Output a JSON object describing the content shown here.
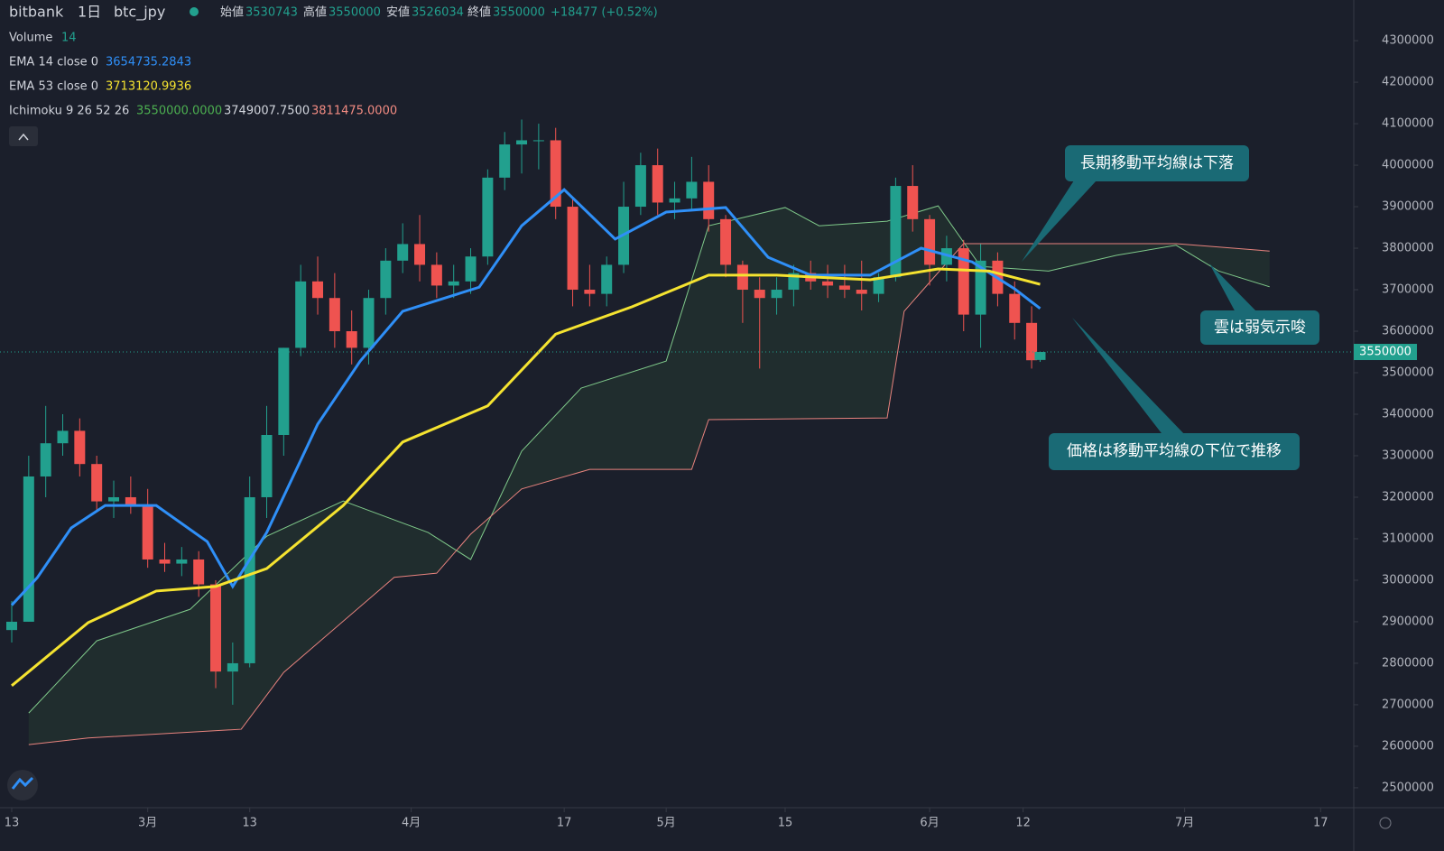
{
  "header": {
    "exchange": "bitbank",
    "interval": "1日",
    "symbol": "btc_jpy",
    "open_label": "始値",
    "open": 3530743,
    "high_label": "高値",
    "high": 3550000,
    "low_label": "安値",
    "low": 3526034,
    "close_label": "終値",
    "close": 3550000,
    "change": "+18477 (+0.52%)"
  },
  "indicators": [
    {
      "label": "Volume",
      "readouts": [
        "14"
      ]
    },
    {
      "label": "Ichimoku 9 26 52 26",
      "readouts": [
        "3550000.0000",
        "3749007.7500",
        "3811475.0000"
      ]
    }
  ],
  "annotations": [
    "長期移動平均線は下落",
    "雲は弱気示唆",
    "価格は移動平均線の下位で推移"
  ],
  "chart_data": {
    "type": "candlestick",
    "x": [
      0,
      2,
      4,
      6,
      8,
      10,
      12,
      14,
      16,
      18,
      20,
      22,
      24,
      26,
      28,
      30,
      32,
      34,
      36,
      38,
      40,
      42,
      44,
      46,
      48,
      50,
      52,
      54,
      56,
      58,
      60,
      62,
      64,
      66,
      68,
      70,
      72,
      74,
      76,
      78,
      80,
      82,
      84,
      86,
      88,
      90,
      92,
      94,
      96,
      98,
      100,
      102,
      104,
      106,
      108,
      110,
      112,
      114,
      116,
      118,
      120,
      121
    ],
    "candles": [
      [
        2880000,
        2950000,
        2850000,
        2900000
      ],
      [
        2900000,
        3300000,
        2900000,
        3250000
      ],
      [
        3250000,
        3420000,
        3200000,
        3330000
      ],
      [
        3330000,
        3400000,
        3300000,
        3360000
      ],
      [
        3360000,
        3390000,
        3250000,
        3280000
      ],
      [
        3280000,
        3300000,
        3170000,
        3190000
      ],
      [
        3190000,
        3240000,
        3150000,
        3200000
      ],
      [
        3200000,
        3250000,
        3160000,
        3180000
      ],
      [
        3180000,
        3220000,
        3030000,
        3050000
      ],
      [
        3050000,
        3090000,
        3020000,
        3040000
      ],
      [
        3040000,
        3080000,
        3010000,
        3050000
      ],
      [
        3050000,
        3070000,
        2960000,
        2990000
      ],
      [
        2990000,
        3000000,
        2740000,
        2780000
      ],
      [
        2780000,
        2850000,
        2700000,
        2800000
      ],
      [
        2800000,
        3250000,
        2790000,
        3200000
      ],
      [
        3200000,
        3420000,
        3150000,
        3350000
      ],
      [
        3350000,
        3560000,
        3300000,
        3560000
      ],
      [
        3560000,
        3760000,
        3540000,
        3720000
      ],
      [
        3720000,
        3780000,
        3640000,
        3680000
      ],
      [
        3680000,
        3740000,
        3560000,
        3600000
      ],
      [
        3600000,
        3650000,
        3520000,
        3560000
      ],
      [
        3560000,
        3700000,
        3520000,
        3680000
      ],
      [
        3680000,
        3800000,
        3640000,
        3770000
      ],
      [
        3770000,
        3860000,
        3740000,
        3810000
      ],
      [
        3810000,
        3880000,
        3720000,
        3760000
      ],
      [
        3760000,
        3790000,
        3680000,
        3710000
      ],
      [
        3710000,
        3760000,
        3680000,
        3720000
      ],
      [
        3720000,
        3800000,
        3690000,
        3780000
      ],
      [
        3780000,
        3990000,
        3760000,
        3970000
      ],
      [
        3970000,
        4080000,
        3940000,
        4050000
      ],
      [
        4050000,
        4110000,
        3980000,
        4060000
      ],
      [
        4060000,
        4100000,
        3990000,
        4060000
      ],
      [
        4060000,
        4090000,
        3870000,
        3900000
      ],
      [
        3900000,
        3920000,
        3660000,
        3700000
      ],
      [
        3700000,
        3760000,
        3660000,
        3690000
      ],
      [
        3690000,
        3780000,
        3660000,
        3760000
      ],
      [
        3760000,
        3960000,
        3740000,
        3900000
      ],
      [
        3900000,
        4030000,
        3880000,
        4000000
      ],
      [
        4000000,
        4040000,
        3880000,
        3910000
      ],
      [
        3910000,
        3960000,
        3870000,
        3920000
      ],
      [
        3920000,
        4020000,
        3890000,
        3960000
      ],
      [
        3960000,
        4000000,
        3840000,
        3870000
      ],
      [
        3870000,
        3880000,
        3730000,
        3760000
      ],
      [
        3760000,
        3770000,
        3620000,
        3700000
      ],
      [
        3700000,
        3730000,
        3510000,
        3680000
      ],
      [
        3680000,
        3730000,
        3640000,
        3700000
      ],
      [
        3700000,
        3760000,
        3660000,
        3740000
      ],
      [
        3740000,
        3770000,
        3700000,
        3720000
      ],
      [
        3720000,
        3760000,
        3680000,
        3710000
      ],
      [
        3710000,
        3760000,
        3680000,
        3700000
      ],
      [
        3700000,
        3770000,
        3650000,
        3690000
      ],
      [
        3690000,
        3740000,
        3670000,
        3730000
      ],
      [
        3730000,
        3970000,
        3720000,
        3950000
      ],
      [
        3950000,
        4000000,
        3840000,
        3870000
      ],
      [
        3870000,
        3880000,
        3710000,
        3760000
      ],
      [
        3760000,
        3830000,
        3720000,
        3800000
      ],
      [
        3800000,
        3820000,
        3600000,
        3640000
      ],
      [
        3640000,
        3810000,
        3560000,
        3770000
      ],
      [
        3770000,
        3790000,
        3660000,
        3690000
      ],
      [
        3690000,
        3720000,
        3580000,
        3620000
      ],
      [
        3620000,
        3660000,
        3510000,
        3530000
      ],
      [
        3530743,
        3550000,
        3526034,
        3550000
      ]
    ],
    "up_color": "#22a08e",
    "down_color": "#ef5350",
    "series": [
      {
        "name": "EMA 14 close 0",
        "readout": "3654735.2843",
        "color": "#2f8ff7",
        "x": [
          0,
          3,
          7,
          11,
          17,
          23,
          26,
          30,
          36,
          41,
          46,
          55,
          60,
          65,
          71,
          77,
          84,
          89,
          94,
          101,
          107,
          113,
          118,
          121
        ],
        "values": [
          2940000,
          3006000,
          3126000,
          3180000,
          3180000,
          3093000,
          2985000,
          3115000,
          3376000,
          3528000,
          3648000,
          3706000,
          3854000,
          3941000,
          3822000,
          3887000,
          3898000,
          3778000,
          3735000,
          3735000,
          3800000,
          3767000,
          3702000,
          3654735
        ]
      },
      {
        "name": "EMA 53 close 0",
        "readout": "3713120.9936",
        "color": "#f5e330",
        "x": [
          0,
          9,
          17,
          24,
          30,
          39,
          46,
          56,
          64,
          73,
          82,
          90,
          101,
          109,
          115,
          121
        ],
        "values": [
          2746000,
          2898000,
          2974000,
          2985000,
          3028000,
          3180000,
          3333000,
          3420000,
          3593000,
          3659000,
          3735000,
          3735000,
          3724000,
          3750000,
          3745000,
          3713000
        ]
      },
      {
        "color": "#7fc98a",
        "x": [
          2,
          10,
          21,
          30,
          39,
          49,
          54,
          60,
          67,
          77,
          82,
          91,
          95,
          103,
          109,
          114,
          122,
          130,
          137,
          142,
          148
        ],
        "values": [
          2680000,
          2854000,
          2930000,
          3106000,
          3191000,
          3115000,
          3050000,
          3311000,
          3463000,
          3528000,
          3854000,
          3898000,
          3854000,
          3865000,
          3902000,
          3756000,
          3745000,
          3783000,
          3807000,
          3745000,
          3707000
        ]
      },
      {
        "color": "#e8837e",
        "x": [
          2,
          9,
          27,
          32,
          45,
          50,
          54,
          60,
          68,
          80,
          82,
          103,
          105,
          112,
          137,
          148
        ],
        "values": [
          2604000,
          2620000,
          2641000,
          2778000,
          3007000,
          3017000,
          3111000,
          3220000,
          3267000,
          3267000,
          3387000,
          3391000,
          3648000,
          3811000,
          3811000,
          3793000
        ]
      }
    ],
    "last_price": 3550000,
    "ylim": [
      2452000,
      4398000
    ],
    "yticks": [
      2500000,
      2600000,
      2700000,
      2800000,
      2900000,
      3000000,
      3100000,
      3200000,
      3300000,
      3400000,
      3500000,
      3600000,
      3700000,
      3800000,
      3900000,
      4000000,
      4100000,
      4200000,
      4300000
    ],
    "xlim": [
      -1.38,
      157.9
    ],
    "xticks": [
      {
        "value": 0,
        "label": "13"
      },
      {
        "value": 16,
        "label": "3月"
      },
      {
        "value": 28,
        "label": "13"
      },
      {
        "value": 47,
        "label": "4月"
      },
      {
        "value": 65,
        "label": "17"
      },
      {
        "value": 77,
        "label": "5月"
      },
      {
        "value": 91,
        "label": "15"
      },
      {
        "value": 108,
        "label": "6月"
      },
      {
        "value": 119,
        "label": "12"
      },
      {
        "value": 138,
        "label": "7月"
      },
      {
        "value": 154,
        "label": "17"
      }
    ]
  }
}
